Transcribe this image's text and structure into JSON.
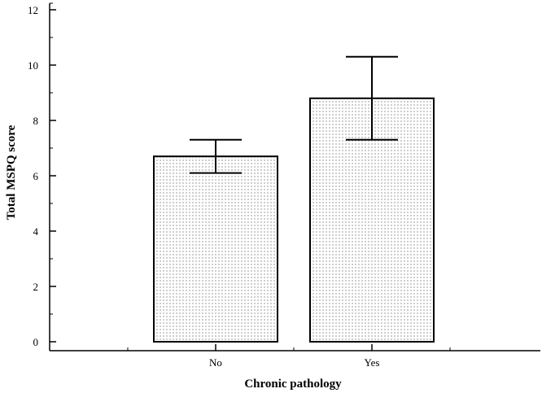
{
  "chart_data": {
    "type": "bar",
    "categories": [
      "No",
      "Yes"
    ],
    "values": [
      6.7,
      8.8
    ],
    "error_bars": [
      {
        "low": 6.1,
        "high": 7.3
      },
      {
        "low": 7.3,
        "high": 10.3
      }
    ],
    "title": "",
    "xlabel": "Chronic pathology",
    "ylabel": "Total MSPQ score",
    "ylim": [
      0,
      12
    ],
    "yticks": [
      "0",
      "2",
      "4",
      "6",
      "8",
      "10",
      "12"
    ],
    "grid": false,
    "legend": "none",
    "bar_fill": "dotted",
    "colors": {
      "bar_fill": "#ffffff",
      "dot": "#555555",
      "stroke": "#000000"
    }
  }
}
